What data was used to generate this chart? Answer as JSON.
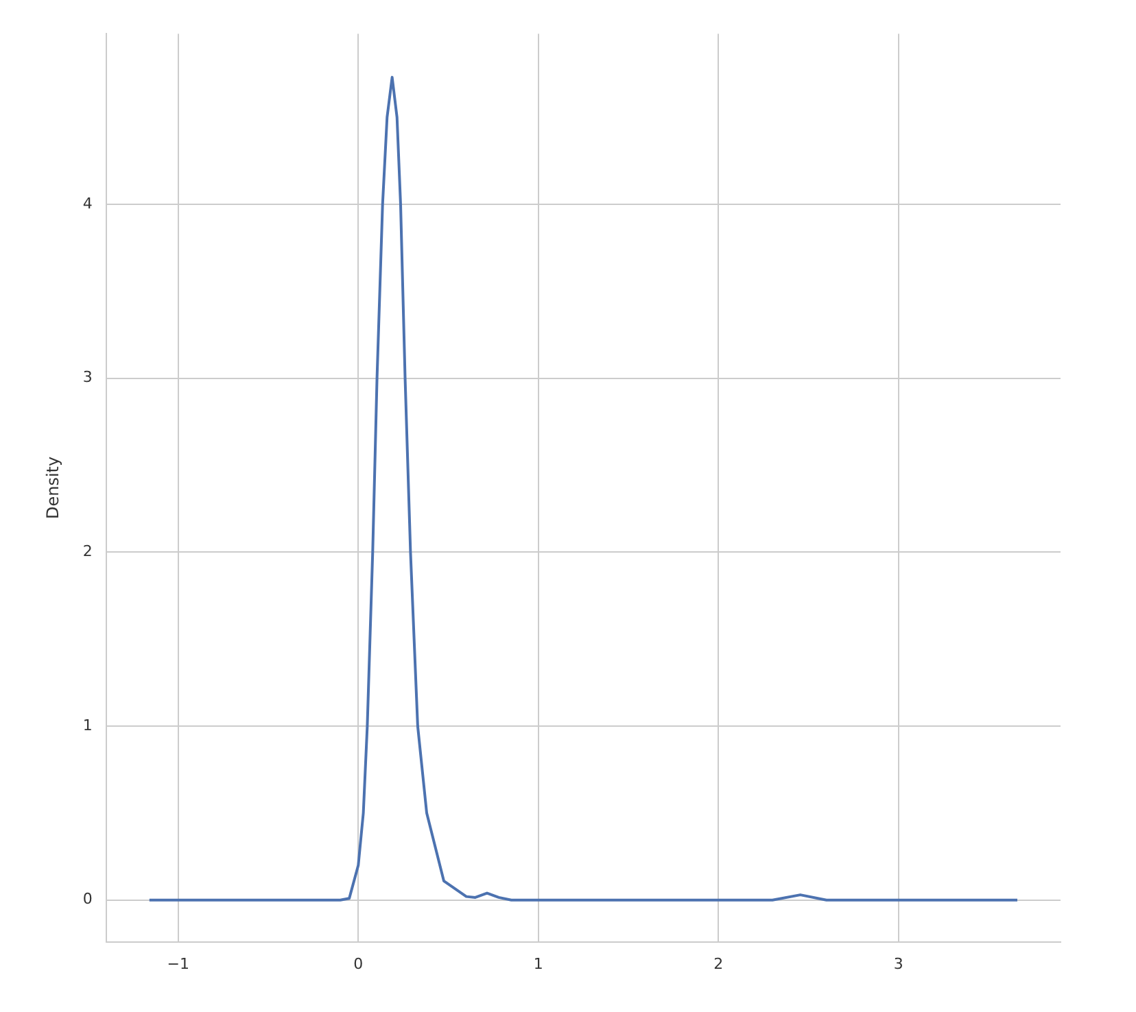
{
  "chart_data": {
    "type": "line",
    "ylabel": "Density",
    "xlim": [
      -1.4,
      3.9
    ],
    "ylim": [
      -0.24,
      4.98
    ],
    "xticks": [
      -1,
      0,
      1,
      2,
      3
    ],
    "yticks": [
      0,
      1,
      2,
      3,
      4
    ],
    "grid": true,
    "legend": false,
    "series": [
      {
        "color": "#4c72b0",
        "x": [
          -1.16,
          -0.1,
          -0.05,
          0,
          0.028,
          0.05,
          0.08,
          0.104,
          0.135,
          0.16,
          0.188,
          0.215,
          0.235,
          0.26,
          0.29,
          0.33,
          0.38,
          0.475,
          0.6,
          0.65,
          0.715,
          0.78,
          0.85,
          2.3,
          2.455,
          2.6,
          3.66
        ],
        "values": [
          0,
          0,
          0.01,
          0.2,
          0.5,
          1,
          2,
          3,
          4,
          4.5,
          4.73,
          4.5,
          4,
          3,
          2,
          1,
          0.5,
          0.11,
          0.02,
          0.015,
          0.04,
          0.015,
          0,
          0,
          0.03,
          0,
          0
        ]
      }
    ]
  }
}
